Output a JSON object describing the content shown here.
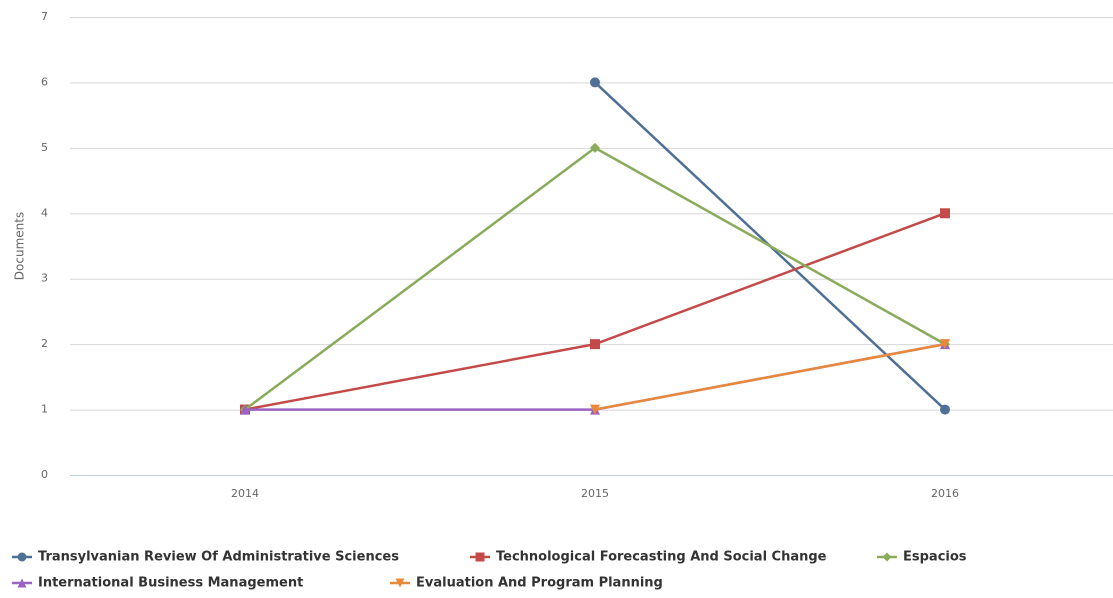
{
  "chart_data": {
    "type": "line",
    "y_label": "Documents",
    "categories": [
      "2014",
      "2015",
      "2016"
    ],
    "series": [
      {
        "name": "Transylvanian Review Of Administrative Sciences",
        "color": "#4f6f94",
        "marker": "circle",
        "values": [
          null,
          6,
          1
        ]
      },
      {
        "name": "Technological Forecasting And Social Change",
        "color": "#c44a4a",
        "marker": "square",
        "values": [
          1,
          2,
          4
        ]
      },
      {
        "name": "Espacios",
        "color": "#8aab5c",
        "marker": "diamond",
        "values": [
          1,
          5,
          2
        ]
      },
      {
        "name": "International Business Management",
        "color": "#9b62c1",
        "marker": "triangle",
        "values": [
          1,
          1,
          2
        ]
      },
      {
        "name": "Evaluation And Program Planning",
        "color": "#e8883a",
        "marker": "triangle-down",
        "values": [
          null,
          1,
          2
        ]
      }
    ],
    "ylim": [
      0,
      7
    ],
    "yticks": [
      0,
      1,
      2,
      3,
      4,
      5,
      6,
      7
    ],
    "grid": true
  }
}
